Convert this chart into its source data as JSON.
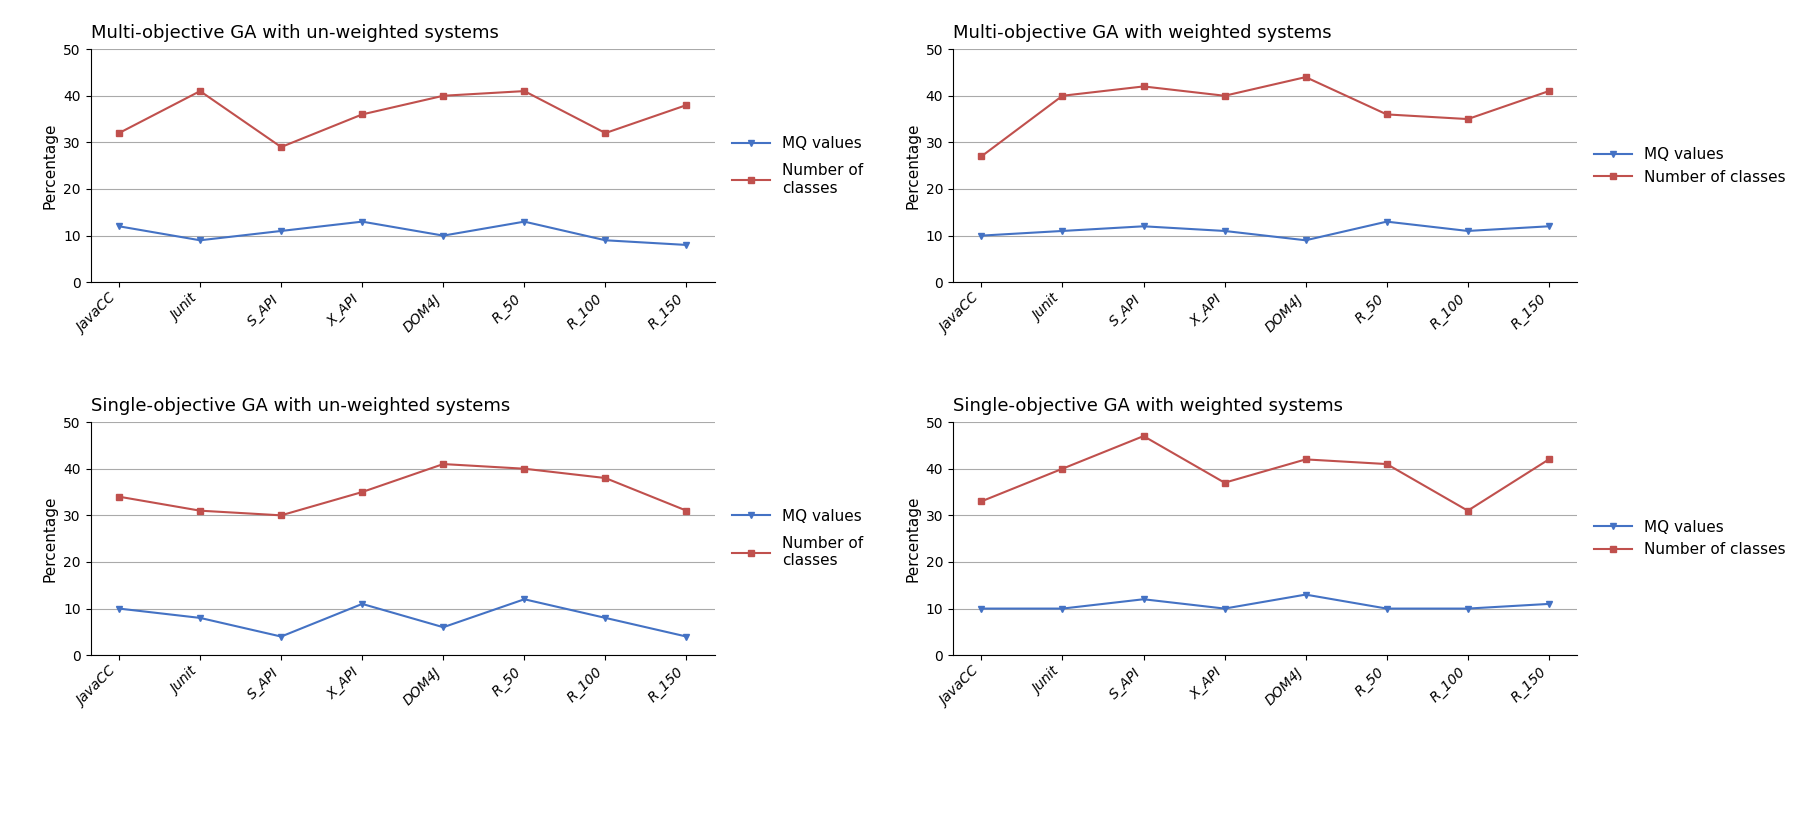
{
  "categories": [
    "JavaCC",
    "Junit",
    "S_API",
    "X_API",
    "DOM4J",
    "R_50",
    "R_100",
    "R_150"
  ],
  "subplots": [
    {
      "title": "Multi-objective GA with un-weighted systems",
      "mq_values": [
        12,
        9,
        11,
        13,
        10,
        13,
        9,
        8
      ],
      "class_values": [
        32,
        41,
        29,
        36,
        40,
        41,
        32,
        38
      ],
      "legend_multiline": true
    },
    {
      "title": "Multi-objective GA with weighted systems",
      "mq_values": [
        10,
        11,
        12,
        11,
        9,
        13,
        11,
        12
      ],
      "class_values": [
        27,
        40,
        42,
        40,
        44,
        36,
        35,
        41
      ],
      "legend_multiline": false
    },
    {
      "title": "Single-objective GA with un-weighted systems",
      "mq_values": [
        10,
        8,
        4,
        11,
        6,
        12,
        8,
        4
      ],
      "class_values": [
        34,
        31,
        30,
        35,
        41,
        40,
        38,
        31
      ],
      "legend_multiline": true
    },
    {
      "title": "Single-objective GA with weighted systems",
      "mq_values": [
        10,
        10,
        12,
        10,
        13,
        10,
        10,
        11
      ],
      "class_values": [
        33,
        40,
        47,
        37,
        42,
        41,
        31,
        42
      ],
      "legend_multiline": false
    }
  ],
  "mq_color": "#4472C4",
  "class_color": "#C0504D",
  "mq_label": "MQ values",
  "class_label": "Number of classes",
  "class_label_multiline": "Number of\nclasses",
  "ylabel": "Percentage",
  "ylim": [
    0,
    50
  ],
  "yticks": [
    0,
    10,
    20,
    30,
    40,
    50
  ],
  "background_color": "#ffffff",
  "title_fontsize": 13,
  "label_fontsize": 11,
  "tick_fontsize": 10,
  "legend_fontsize": 11
}
